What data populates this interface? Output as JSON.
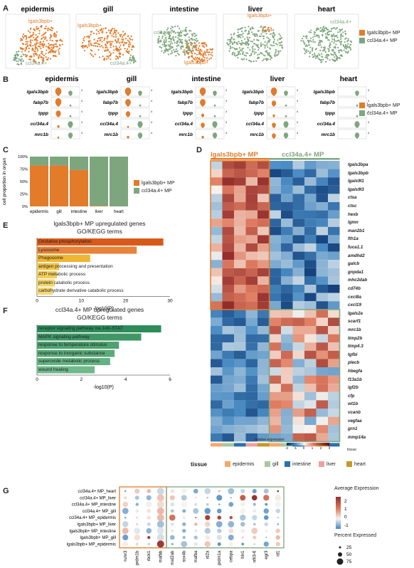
{
  "colors": {
    "orange": "#e27b2a",
    "green": "#7ea67e",
    "epidermis": "#f3a96b",
    "gill": "#a7c89b",
    "intestine": "#2a71ae",
    "liver": "#f1a0a0",
    "heart": "#c59a25"
  },
  "panelA": {
    "label": "A",
    "tissues": [
      "epidermis",
      "gill",
      "intestine",
      "liver",
      "heart"
    ],
    "annot": {
      "lgals": "lgals3bpb+",
      "ccl": "ccl34a.4+"
    },
    "legend": [
      "lgals3bpb+ MP",
      "ccl34a.4+ MP"
    ]
  },
  "panelB": {
    "label": "B",
    "tissues": [
      "epidermis",
      "gill",
      "intestine",
      "liver",
      "heart"
    ],
    "genes": [
      "lgals3bpb",
      "fabp7b",
      "tppp",
      "ccl34a.4",
      "mrc1b"
    ],
    "legend": [
      "lgals3bpb+ MP",
      "ccl34a.4+ MP"
    ]
  },
  "panelC": {
    "label": "C",
    "ylabel": "cell proportion in organ",
    "yticks": [
      "100%",
      "75%",
      "50%",
      "25%",
      "0%"
    ],
    "legend": [
      "lgals3bpb+ MP",
      "ccl34a.4+ MP"
    ],
    "chart_data": {
      "type": "bar",
      "stacked": true,
      "categories": [
        "epidermis",
        "gill",
        "intestine",
        "liver",
        "heart"
      ],
      "series": [
        {
          "name": "lgals3bpb+ MP",
          "values": [
            82,
            82,
            73,
            1,
            0
          ]
        },
        {
          "name": "ccl34a.4+ MP",
          "values": [
            18,
            18,
            27,
            99,
            100
          ]
        }
      ],
      "ylim": [
        0,
        100
      ]
    }
  },
  "panelD": {
    "label": "D",
    "group1": "lgals3bpb+ MP",
    "group2": "ccl34a.4+ MP",
    "genes": [
      "lgals3bpa",
      "lgals3bpb",
      "lgals9l1",
      "lgals9l3",
      "ctsa",
      "ctsc",
      "hexb",
      "lgmn",
      "man2b1",
      "fth1a",
      "fuca1.1",
      "amdhd2",
      "galcb",
      "gnpda1",
      "mhc2dab",
      "cd74b",
      "cxcl8a",
      "cxcl19",
      "lgals2a",
      "scarf1",
      "mrc1b",
      "timp2b",
      "timp4.3",
      "tgfbi",
      "plecb",
      "hbegfa",
      "f13a1b",
      "igf2b",
      "cfp",
      "wt1b",
      "vcanb",
      "vegfaa",
      "grn1",
      "mmp14a"
    ],
    "scale_title": "relative expression",
    "scale_ticks": [
      "-2",
      "-1",
      "0",
      "1",
      "2",
      "3"
    ],
    "tissue_tag": "tissue",
    "tissue_legend_title": "tissue",
    "tissue_legend": [
      "epidermis",
      "gill",
      "intestine",
      "liver",
      "heart"
    ]
  },
  "panelE": {
    "label": "E",
    "title1": "lgals3bpb+ MP upregulated genes",
    "title2": "GO/KEGG terms",
    "xlabel": "-log10(P)",
    "xticks": [
      "0",
      "10",
      "20",
      "30"
    ],
    "chart_data": {
      "type": "bar",
      "orientation": "horizontal",
      "categories": [
        "Oxidative phosphorylation",
        "Lysosome",
        "Phagosome",
        "antigen processing and presentation",
        "ATP metabolic process",
        "protein catabolic process",
        "carbohydrate derivative catabolic process"
      ],
      "values": [
        28.5,
        22.5,
        12,
        5,
        4.5,
        4,
        3.5
      ],
      "xlim": [
        0,
        30
      ]
    }
  },
  "panelF": {
    "label": "F",
    "title1": "ccl34a.4+ MP upregulated genes",
    "title2": "GO/KEGG terms",
    "xlabel": "-log10(P)",
    "xticks": [
      "0",
      "2",
      "4",
      "6"
    ],
    "chart_data": {
      "type": "bar",
      "orientation": "horizontal",
      "categories": [
        "receptor signaling pathway via JAK-STAT",
        "MAPK signaling pathway",
        "response to temperature stimulus",
        "response to inorganic substance",
        "superoxide metabolic process",
        "wound healing"
      ],
      "values": [
        5.6,
        4.7,
        3.7,
        3.5,
        3.3,
        2.6
      ],
      "xlim": [
        0,
        6
      ]
    }
  },
  "panelG": {
    "label": "G",
    "rows": [
      "ccl34a.4+ MP_heart",
      "ccl34a.4+ MP_liver",
      "ccl34a.4+ MP_intestine",
      "ccl34a.4+ MP_gill",
      "ccl34a.4+ MP_epidermis",
      "lgals3bpb+ MP_liver",
      "lgals3bpb+ MP_intestine",
      "lgals3bpb+ MP_gill",
      "lgals3bpb+ MP_epidermis"
    ],
    "cols": [
      "runx3",
      "prdm1b",
      "rbck1",
      "mafbb",
      "maf2ab",
      "sox4b",
      "mafba",
      "id2a",
      "prdm1a",
      "cebpa",
      "hlx1",
      "nfil3-6",
      "egr3",
      "id1"
    ],
    "avg_title": "Average Expression",
    "avg_ticks": [
      "2",
      "1",
      "0",
      "-1"
    ],
    "pct_title": "Percent Expressed",
    "pct_ticks": [
      "25",
      "50",
      "75"
    ]
  }
}
